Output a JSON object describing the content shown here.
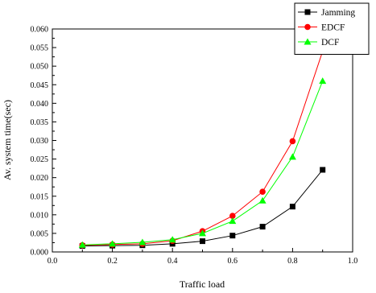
{
  "chart_data": {
    "type": "line",
    "xlabel": "Traffic load",
    "ylabel": "Av. system time(sec)",
    "xlim": [
      0.0,
      1.0
    ],
    "ylim": [
      0.0,
      0.06
    ],
    "x_ticks": [
      0.0,
      0.2,
      0.4,
      0.6,
      0.8,
      1.0
    ],
    "x_tick_labels": [
      "0.0",
      "0.2",
      "0.4",
      "0.6",
      "0.8",
      "1.0"
    ],
    "y_ticks": [
      0.0,
      0.005,
      0.01,
      0.015,
      0.02,
      0.025,
      0.03,
      0.035,
      0.04,
      0.045,
      0.05,
      0.055,
      0.06
    ],
    "y_tick_labels": [
      "0.000",
      "0.005",
      "0.010",
      "0.015",
      "0.020",
      "0.025",
      "0.030",
      "0.035",
      "0.040",
      "0.045",
      "0.050",
      "0.055",
      "0.060"
    ],
    "grid": false,
    "legend_position": "top-right",
    "x": [
      0.1,
      0.2,
      0.3,
      0.4,
      0.5,
      0.6,
      0.7,
      0.8,
      0.9
    ],
    "series": [
      {
        "name": "Jamming",
        "color": "#000000",
        "marker": "square",
        "values": [
          0.0016,
          0.0017,
          0.0018,
          0.0022,
          0.0029,
          0.0044,
          0.0068,
          0.0122,
          0.0221
        ]
      },
      {
        "name": "EDCF",
        "color": "#ff0000",
        "marker": "circle",
        "values": [
          0.0018,
          0.002,
          0.0022,
          0.003,
          0.0056,
          0.0097,
          0.0162,
          0.0298,
          0.054
        ]
      },
      {
        "name": "DCF",
        "color": "#00ff00",
        "marker": "triangle",
        "values": [
          0.0019,
          0.0022,
          0.0026,
          0.0033,
          0.005,
          0.0083,
          0.0138,
          0.0256,
          0.046
        ]
      }
    ]
  }
}
